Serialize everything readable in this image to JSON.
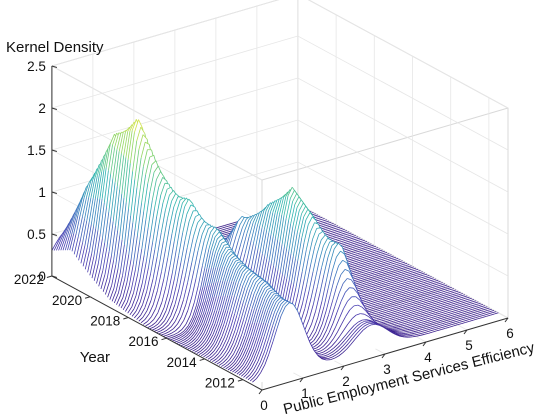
{
  "chart_data": {
    "type": "surface3d",
    "title": "",
    "zlabel": "Kernel Density",
    "ylabel": "Year",
    "xlabel": "Public Employment Services Efficiency",
    "zlim": [
      0,
      2.5
    ],
    "ylim": [
      2011,
      2022
    ],
    "xlim": [
      0,
      6
    ],
    "z_ticks": [
      "0",
      "0.5",
      "1",
      "1.5",
      "2",
      "2.5"
    ],
    "year_ticks": [
      "2022",
      "2020",
      "2018",
      "2016",
      "2014",
      "2012"
    ],
    "x_ticks": [
      "0",
      "1",
      "2",
      "3",
      "4",
      "5",
      "6"
    ],
    "grid": true,
    "colormap": [
      "#3b1f8c",
      "#4a3fb3",
      "#3a7fc0",
      "#2fb5b0",
      "#7fd26a",
      "#e8e845"
    ],
    "series": [
      {
        "year": 2012,
        "peaks": [
          {
            "center": 0.9,
            "height": 0.85,
            "width": 0.35
          },
          {
            "center": 2.9,
            "height": 0.3,
            "width": 0.4
          }
        ]
      },
      {
        "year": 2013,
        "peaks": [
          {
            "center": 1.0,
            "height": 0.9,
            "width": 0.35
          },
          {
            "center": 2.8,
            "height": 1.1,
            "width": 0.3
          }
        ]
      },
      {
        "year": 2014,
        "peaks": [
          {
            "center": 1.0,
            "height": 0.95,
            "width": 0.35
          },
          {
            "center": 2.6,
            "height": 1.35,
            "width": 0.3
          }
        ]
      },
      {
        "year": 2015,
        "peaks": [
          {
            "center": 1.1,
            "height": 1.0,
            "width": 0.35
          },
          {
            "center": 2.6,
            "height": 1.55,
            "width": 0.3
          }
        ]
      },
      {
        "year": 2016,
        "peaks": [
          {
            "center": 1.2,
            "height": 1.15,
            "width": 0.3
          },
          {
            "center": 2.5,
            "height": 1.25,
            "width": 0.3
          }
        ]
      },
      {
        "year": 2017,
        "peaks": [
          {
            "center": 1.0,
            "height": 1.4,
            "width": 0.3
          },
          {
            "center": 2.3,
            "height": 1.0,
            "width": 0.35
          }
        ]
      },
      {
        "year": 2018,
        "peaks": [
          {
            "center": 0.8,
            "height": 1.6,
            "width": 0.3
          },
          {
            "center": 2.0,
            "height": 0.5,
            "width": 0.4
          }
        ]
      },
      {
        "year": 2019,
        "peaks": [
          {
            "center": 0.7,
            "height": 2.15,
            "width": 0.28
          },
          {
            "center": 1.8,
            "height": 0.35,
            "width": 0.4
          }
        ]
      },
      {
        "year": 2020,
        "peaks": [
          {
            "center": 0.6,
            "height": 1.85,
            "width": 0.3
          },
          {
            "center": 1.7,
            "height": 0.4,
            "width": 0.4
          }
        ]
      },
      {
        "year": 2021,
        "peaks": [
          {
            "center": 0.5,
            "height": 1.2,
            "width": 0.35
          },
          {
            "center": 1.6,
            "height": 0.3,
            "width": 0.4
          }
        ]
      },
      {
        "year": 2022,
        "peaks": [
          {
            "center": 0.4,
            "height": 0.5,
            "width": 0.4
          }
        ]
      }
    ]
  }
}
